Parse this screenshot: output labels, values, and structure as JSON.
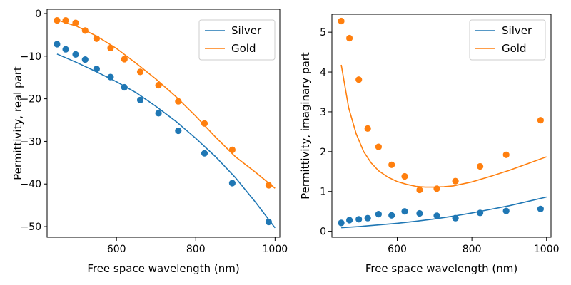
{
  "chart_data": [
    {
      "type": "line+scatter",
      "xlabel": "Free space wavelength (nm)",
      "ylabel": "Permittivity, real part",
      "xlim": [
        425,
        1012
      ],
      "ylim": [
        -52.5,
        1.0
      ],
      "xticks": [
        600,
        800,
        1000
      ],
      "yticks": [
        0,
        -10,
        -20,
        -30,
        -40,
        -50
      ],
      "legend": "top-right",
      "series": [
        {
          "name": "Silver",
          "color": "#1f77b4",
          "line": {
            "x": [
              450,
              500,
              550,
              600,
              650,
              700,
              750,
              800,
              850,
              900,
              950,
              1000
            ],
            "y": [
              -9.5,
              -11.5,
              -13.7,
              -16.0,
              -18.6,
              -21.8,
              -25.3,
              -29.3,
              -33.6,
              -38.5,
              -44.2,
              -50.3
            ]
          },
          "points": {
            "x": [
              450,
              472,
              497,
              521,
              550,
              585,
              620,
              660,
              706,
              756,
              822,
              892,
              984
            ],
            "y": [
              -7.2,
              -8.4,
              -9.6,
              -10.8,
              -13.0,
              -14.9,
              -17.3,
              -20.3,
              -23.4,
              -27.5,
              -32.8,
              -39.8,
              -48.9
            ]
          }
        },
        {
          "name": "Gold",
          "color": "#ff7f0e",
          "line": {
            "x": [
              450,
              500,
              550,
              600,
              650,
              700,
              750,
              800,
              850,
              900,
              950,
              1000
            ],
            "y": [
              -1.5,
              -3.0,
              -5.3,
              -8.2,
              -11.7,
              -15.4,
              -19.5,
              -24.1,
              -29.0,
              -33.6,
              -37.2,
              -41.0
            ]
          },
          "points": {
            "x": [
              450,
              472,
              497,
              521,
              550,
              585,
              620,
              660,
              706,
              756,
              822,
              892,
              984
            ],
            "y": [
              -1.6,
              -1.6,
              -2.2,
              -4.0,
              -5.9,
              -8.1,
              -10.7,
              -13.7,
              -16.8,
              -20.6,
              -25.8,
              -32.0,
              -40.3
            ]
          }
        }
      ]
    },
    {
      "type": "line+scatter",
      "xlabel": "Free space wavelength (nm)",
      "ylabel": "Permittivity, imaginary part",
      "xlim": [
        425,
        1012
      ],
      "ylim": [
        -0.15,
        5.45
      ],
      "xticks": [
        600,
        800,
        1000
      ],
      "yticks": [
        0,
        1,
        2,
        3,
        4,
        5
      ],
      "legend": "top-right",
      "series": [
        {
          "name": "Silver",
          "color": "#1f77b4",
          "line": {
            "x": [
              450,
              500,
              550,
              600,
              650,
              700,
              750,
              800,
              850,
              900,
              950,
              1000
            ],
            "y": [
              0.09,
              0.12,
              0.16,
              0.2,
              0.25,
              0.31,
              0.38,
              0.46,
              0.55,
              0.64,
              0.75,
              0.86
            ]
          },
          "points": {
            "x": [
              450,
              472,
              497,
              521,
              550,
              585,
              620,
              660,
              706,
              756,
              822,
              892,
              984
            ],
            "y": [
              0.21,
              0.28,
              0.3,
              0.33,
              0.43,
              0.4,
              0.5,
              0.45,
              0.39,
              0.33,
              0.46,
              0.51,
              0.56
            ]
          }
        },
        {
          "name": "Gold",
          "color": "#ff7f0e",
          "line": {
            "x": [
              450,
              470,
              490,
              510,
              530,
              550,
              575,
              600,
              625,
              650,
              675,
              700,
              725,
              750,
              800,
              850,
              900,
              950,
              1000
            ],
            "y": [
              4.18,
              3.1,
              2.45,
              2.0,
              1.72,
              1.52,
              1.36,
              1.25,
              1.18,
              1.13,
              1.11,
              1.11,
              1.12,
              1.14,
              1.24,
              1.38,
              1.53,
              1.7,
              1.87
            ]
          },
          "points": {
            "x": [
              450,
              472,
              497,
              521,
              550,
              585,
              620,
              660,
              706,
              756,
              822,
              892,
              984
            ],
            "y": [
              5.28,
              4.85,
              3.81,
              2.58,
              2.12,
              1.67,
              1.38,
              1.04,
              1.07,
              1.26,
              1.63,
              1.92,
              2.79
            ]
          }
        }
      ]
    }
  ]
}
